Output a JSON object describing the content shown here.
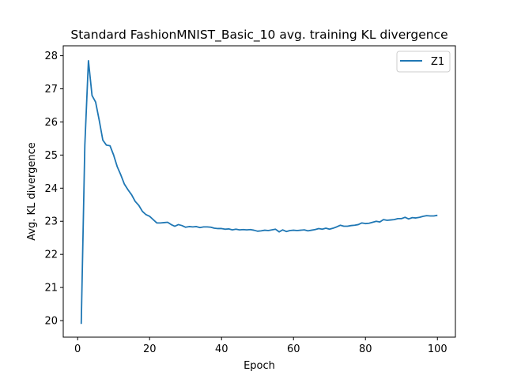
{
  "chart_data": {
    "type": "line",
    "title": "Standard FashionMNIST_Basic_10 avg. training KL divergence",
    "xlabel": "Epoch",
    "ylabel": "Avg. KL divergence",
    "xlim": [
      -4,
      105
    ],
    "ylim": [
      19.5,
      28.3
    ],
    "xticks": [
      0,
      20,
      40,
      60,
      80,
      100
    ],
    "yticks": [
      20,
      21,
      22,
      23,
      24,
      25,
      26,
      27,
      28
    ],
    "grid": false,
    "legend_position": "top-right",
    "series": [
      {
        "name": "Z1",
        "color": "#1f77b4",
        "x": [
          1,
          2,
          3,
          4,
          5,
          6,
          7,
          8,
          9,
          10,
          11,
          12,
          13,
          14,
          15,
          16,
          17,
          18,
          19,
          20,
          21,
          22,
          23,
          24,
          25,
          26,
          27,
          28,
          29,
          30,
          31,
          32,
          33,
          34,
          35,
          36,
          37,
          38,
          39,
          40,
          41,
          42,
          43,
          44,
          45,
          46,
          47,
          48,
          49,
          50,
          51,
          52,
          53,
          54,
          55,
          56,
          57,
          58,
          59,
          60,
          61,
          62,
          63,
          64,
          65,
          66,
          67,
          68,
          69,
          70,
          71,
          72,
          73,
          74,
          75,
          76,
          77,
          78,
          79,
          80,
          81,
          82,
          83,
          84,
          85,
          86,
          87,
          88,
          89,
          90,
          91,
          92,
          93,
          94,
          95,
          96,
          97,
          98,
          99,
          100
        ],
        "values": [
          19.9,
          25.3,
          27.85,
          26.8,
          26.6,
          26.05,
          25.45,
          25.3,
          25.28,
          25.0,
          24.65,
          24.4,
          24.12,
          23.95,
          23.8,
          23.6,
          23.48,
          23.3,
          23.2,
          23.15,
          23.05,
          22.95,
          22.95,
          22.96,
          22.97,
          22.9,
          22.85,
          22.9,
          22.87,
          22.82,
          22.84,
          22.83,
          22.84,
          22.81,
          22.83,
          22.83,
          22.82,
          22.79,
          22.78,
          22.78,
          22.76,
          22.77,
          22.74,
          22.76,
          22.74,
          22.75,
          22.74,
          22.75,
          22.73,
          22.7,
          22.71,
          22.73,
          22.72,
          22.74,
          22.76,
          22.68,
          22.74,
          22.69,
          22.72,
          22.73,
          22.72,
          22.73,
          22.74,
          22.71,
          22.73,
          22.75,
          22.78,
          22.76,
          22.79,
          22.76,
          22.79,
          22.83,
          22.88,
          22.85,
          22.85,
          22.87,
          22.88,
          22.9,
          22.95,
          22.93,
          22.94,
          22.97,
          23.0,
          22.98,
          23.05,
          23.03,
          23.04,
          23.05,
          23.08,
          23.08,
          23.12,
          23.07,
          23.11,
          23.1,
          23.12,
          23.15,
          23.17,
          23.16,
          23.16,
          23.18
        ]
      }
    ]
  }
}
